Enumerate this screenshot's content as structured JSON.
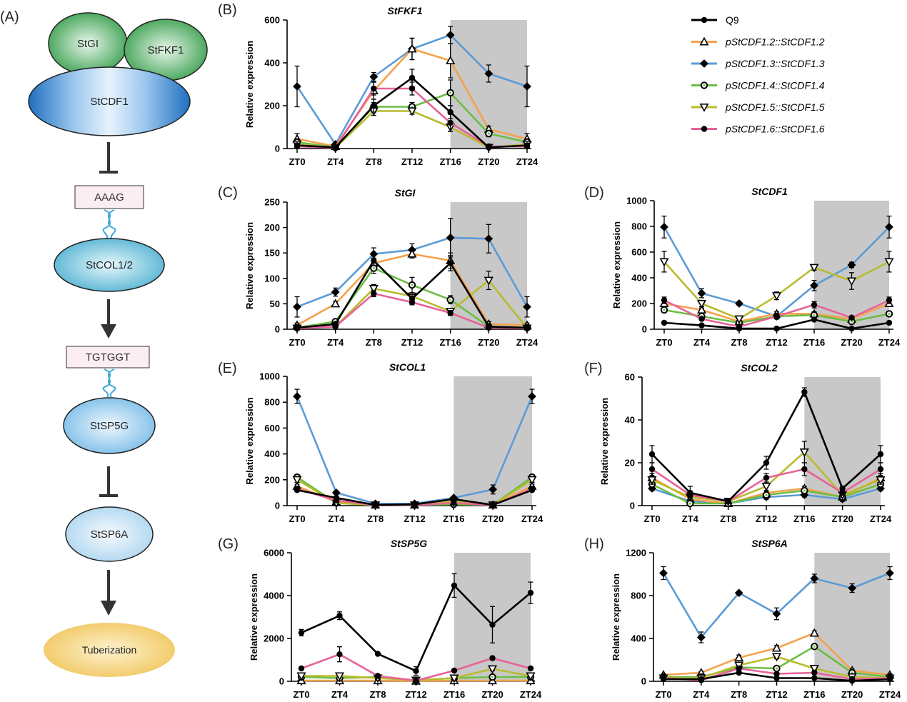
{
  "diagram": {
    "panel_label": "(A)",
    "nodes": {
      "gi": "StGI",
      "fkf1": "StFKF1",
      "cdf1": "StCDF1",
      "aaag": "AAAG",
      "col12": "StCOL1/2",
      "tgtggt": "TGTGGT",
      "sp5g": "StSP5G",
      "sp6a": "StSP6A",
      "tuber": "Tuberization"
    }
  },
  "legend": {
    "items": [
      {
        "label": "Q9",
        "color": "#000000",
        "marker": "circle",
        "italic": false
      },
      {
        "label": "pStCDF1.2::StCDF1.2",
        "color": "#f4a14c",
        "marker": "triangle-up",
        "italic": true
      },
      {
        "label": "pStCDF1.3::StCDF1.3",
        "color": "#5b9bd5",
        "marker": "diamond",
        "italic": true
      },
      {
        "label": "pStCDF1.4::StCDF1.4",
        "color": "#6cbd45",
        "marker": "circle-ring",
        "italic": true
      },
      {
        "label": "pStCDF1.5::StCDF1.5",
        "color": "#b8bb2e",
        "marker": "triangle-down",
        "italic": true
      },
      {
        "label": "pStCDF1.6::StCDF1.6",
        "color": "#e8619a",
        "marker": "circle",
        "italic": true
      }
    ]
  },
  "chart_data": [
    {
      "panel": "(B)",
      "type": "line",
      "title": "StFKF1",
      "ylabel": "Relative expression",
      "categories": [
        "ZT0",
        "ZT4",
        "ZT8",
        "ZT12",
        "ZT16",
        "ZT20",
        "ZT24"
      ],
      "ylim": [
        0,
        600
      ],
      "yticks": [
        0,
        200,
        400,
        600
      ],
      "shaded": [
        "ZT16",
        "ZT24"
      ],
      "series": [
        {
          "name": "Q9",
          "values": [
            15,
            5,
            200,
            330,
            170,
            5,
            15
          ],
          "err": [
            10,
            3,
            30,
            40,
            30,
            3,
            10
          ]
        },
        {
          "name": "pStCDF1.2::StCDF1.2",
          "values": [
            45,
            10,
            270,
            465,
            410,
            90,
            45
          ],
          "err": [
            25,
            5,
            40,
            50,
            80,
            15,
            25
          ]
        },
        {
          "name": "pStCDF1.3::StCDF1.3",
          "values": [
            290,
            20,
            335,
            465,
            530,
            350,
            290
          ],
          "err": [
            95,
            8,
            20,
            50,
            40,
            40,
            95
          ]
        },
        {
          "name": "pStCDF1.4::StCDF1.4",
          "values": [
            30,
            5,
            195,
            195,
            260,
            70,
            30
          ],
          "err": [
            15,
            3,
            20,
            20,
            60,
            15,
            15
          ]
        },
        {
          "name": "pStCDF1.5::StCDF1.5",
          "values": [
            20,
            3,
            175,
            175,
            100,
            5,
            20
          ],
          "err": [
            10,
            2,
            20,
            15,
            20,
            2,
            10
          ]
        },
        {
          "name": "pStCDF1.6::StCDF1.6",
          "values": [
            10,
            3,
            280,
            280,
            120,
            10,
            10
          ],
          "err": [
            5,
            2,
            30,
            30,
            40,
            5,
            5
          ]
        }
      ]
    },
    {
      "panel": "(C)",
      "type": "line",
      "title": "StGI",
      "ylabel": "Relative expression",
      "categories": [
        "ZT0",
        "ZT4",
        "ZT8",
        "ZT12",
        "ZT16",
        "ZT20",
        "ZT24"
      ],
      "ylim": [
        0,
        250
      ],
      "yticks": [
        0,
        50,
        100,
        150,
        200,
        250
      ],
      "shaded": [
        "ZT16",
        "ZT24"
      ],
      "series": [
        {
          "name": "Q9",
          "values": [
            3,
            10,
            135,
            60,
            130,
            5,
            3
          ],
          "err": [
            2,
            3,
            10,
            8,
            15,
            3,
            2
          ]
        },
        {
          "name": "pStCDF1.2::StCDF1.2",
          "values": [
            8,
            50,
            130,
            148,
            135,
            10,
            8
          ],
          "err": [
            4,
            5,
            10,
            8,
            15,
            5,
            4
          ]
        },
        {
          "name": "pStCDF1.3::StCDF1.3",
          "values": [
            44,
            73,
            148,
            156,
            180,
            178,
            44
          ],
          "err": [
            20,
            8,
            12,
            12,
            38,
            28,
            20
          ]
        },
        {
          "name": "pStCDF1.4::StCDF1.4",
          "values": [
            3,
            15,
            120,
            87,
            58,
            5,
            3
          ],
          "err": [
            2,
            4,
            10,
            15,
            8,
            3,
            2
          ]
        },
        {
          "name": "pStCDF1.5::StCDF1.5",
          "values": [
            2,
            5,
            80,
            65,
            35,
            96,
            2
          ],
          "err": [
            1,
            2,
            8,
            6,
            6,
            18,
            1
          ]
        },
        {
          "name": "pStCDF1.6::StCDF1.6",
          "values": [
            2,
            5,
            70,
            53,
            32,
            3,
            2
          ],
          "err": [
            1,
            2,
            6,
            5,
            5,
            2,
            1
          ]
        }
      ]
    },
    {
      "panel": "(D)",
      "type": "line",
      "title": "StCDF1",
      "ylabel": "Relative expression",
      "categories": [
        "ZT0",
        "ZT4",
        "ZT8",
        "ZT12",
        "ZT16",
        "ZT20",
        "ZT24"
      ],
      "ylim": [
        0,
        1000
      ],
      "yticks": [
        0,
        200,
        400,
        600,
        800,
        1000
      ],
      "shaded": [
        "ZT16",
        "ZT24"
      ],
      "series": [
        {
          "name": "Q9",
          "values": [
            50,
            30,
            5,
            5,
            75,
            5,
            50
          ],
          "err": [
            5,
            5,
            3,
            3,
            10,
            3,
            5
          ]
        },
        {
          "name": "pStCDF1.2::StCDF1.2",
          "values": [
            200,
            150,
            60,
            120,
            120,
            80,
            200
          ],
          "err": [
            20,
            15,
            10,
            15,
            15,
            10,
            20
          ]
        },
        {
          "name": "pStCDF1.3::StCDF1.3",
          "values": [
            795,
            280,
            200,
            100,
            340,
            500,
            795
          ],
          "err": [
            85,
            35,
            15,
            15,
            40,
            20,
            85
          ]
        },
        {
          "name": "pStCDF1.4::StCDF1.4",
          "values": [
            150,
            100,
            50,
            100,
            110,
            60,
            120
          ],
          "err": [
            15,
            10,
            8,
            12,
            12,
            8,
            15
          ]
        },
        {
          "name": "pStCDF1.5::StCDF1.5",
          "values": [
            525,
            200,
            80,
            260,
            480,
            375,
            525
          ],
          "err": [
            80,
            25,
            15,
            30,
            20,
            65,
            80
          ]
        },
        {
          "name": "pStCDF1.6::StCDF1.6",
          "values": [
            225,
            80,
            20,
            100,
            190,
            90,
            225
          ],
          "err": [
            25,
            10,
            5,
            15,
            25,
            10,
            25
          ]
        }
      ]
    },
    {
      "panel": "(E)",
      "type": "line",
      "title": "StCOL1",
      "ylabel": "Relative expression",
      "categories": [
        "ZT0",
        "ZT4",
        "ZT8",
        "ZT12",
        "ZT16",
        "ZT20",
        "ZT24"
      ],
      "ylim": [
        0,
        1000
      ],
      "yticks": [
        0,
        200,
        400,
        600,
        800,
        1000
      ],
      "shaded": [
        "ZT16",
        "ZT24"
      ],
      "series": [
        {
          "name": "Q9",
          "values": [
            120,
            60,
            5,
            10,
            50,
            5,
            120
          ],
          "err": [
            10,
            8,
            3,
            4,
            8,
            3,
            10
          ]
        },
        {
          "name": "pStCDF1.2::StCDF1.2",
          "values": [
            150,
            30,
            5,
            5,
            30,
            5,
            150
          ],
          "err": [
            15,
            5,
            3,
            3,
            5,
            3,
            15
          ]
        },
        {
          "name": "pStCDF1.3::StCDF1.3",
          "values": [
            845,
            100,
            15,
            15,
            60,
            125,
            845
          ],
          "err": [
            55,
            15,
            5,
            5,
            10,
            35,
            55
          ]
        },
        {
          "name": "pStCDF1.4::StCDF1.4",
          "values": [
            220,
            20,
            5,
            5,
            10,
            5,
            220
          ],
          "err": [
            20,
            4,
            2,
            2,
            3,
            2,
            20
          ]
        },
        {
          "name": "pStCDF1.5::StCDF1.5",
          "values": [
            200,
            20,
            5,
            5,
            30,
            5,
            200
          ],
          "err": [
            20,
            4,
            2,
            2,
            5,
            2,
            20
          ]
        },
        {
          "name": "pStCDF1.6::StCDF1.6",
          "values": [
            130,
            40,
            5,
            5,
            20,
            5,
            130
          ],
          "err": [
            12,
            6,
            2,
            2,
            4,
            2,
            12
          ]
        }
      ]
    },
    {
      "panel": "(F)",
      "type": "line",
      "title": "StCOL2",
      "ylabel": "Relative expression",
      "categories": [
        "ZT0",
        "ZT4",
        "ZT8",
        "ZT12",
        "ZT16",
        "ZT20",
        "ZT24"
      ],
      "ylim": [
        0,
        60
      ],
      "yticks": [
        0,
        20,
        40,
        60
      ],
      "shaded": [
        "ZT16",
        "ZT24"
      ],
      "series": [
        {
          "name": "Q9",
          "values": [
            24,
            6,
            2,
            20,
            53,
            8,
            24
          ],
          "err": [
            4,
            3,
            1,
            3,
            2,
            1,
            4
          ]
        },
        {
          "name": "pStCDF1.2::StCDF1.2",
          "values": [
            13,
            3,
            1,
            6,
            8,
            4,
            13
          ],
          "err": [
            2,
            1,
            1,
            1,
            1,
            1,
            2
          ]
        },
        {
          "name": "pStCDF1.3::StCDF1.3",
          "values": [
            8,
            2,
            1,
            4,
            5,
            3,
            8
          ],
          "err": [
            1,
            1,
            1,
            1,
            1,
            1,
            1
          ]
        },
        {
          "name": "pStCDF1.4::StCDF1.4",
          "values": [
            10,
            1,
            1,
            5,
            7,
            4,
            10
          ],
          "err": [
            2,
            1,
            1,
            1,
            1,
            1,
            2
          ]
        },
        {
          "name": "pStCDF1.5::StCDF1.5",
          "values": [
            12,
            4,
            2,
            9,
            25,
            5,
            12
          ],
          "err": [
            2,
            1,
            1,
            2,
            5,
            1,
            2
          ]
        },
        {
          "name": "pStCDF1.6::StCDF1.6",
          "values": [
            17,
            5,
            2,
            13,
            17,
            6,
            17
          ],
          "err": [
            3,
            1,
            1,
            2,
            3,
            1,
            3
          ]
        }
      ]
    },
    {
      "panel": "(G)",
      "type": "line",
      "title": "StSP5G",
      "ylabel": "Relative expression",
      "categories": [
        "ZT0",
        "ZT4",
        "ZT8",
        "ZT12",
        "ZT16",
        "ZT20",
        "ZT24"
      ],
      "ylim": [
        0,
        6000
      ],
      "yticks": [
        0,
        2000,
        4000,
        6000
      ],
      "shaded": [
        "ZT16",
        "ZT24"
      ],
      "series": [
        {
          "name": "Q9",
          "values": [
            2270,
            3060,
            1280,
            480,
            4470,
            2640,
            4130
          ],
          "err": [
            150,
            180,
            60,
            200,
            550,
            850,
            500
          ]
        },
        {
          "name": "pStCDF1.2::StCDF1.2",
          "values": [
            30,
            30,
            30,
            10,
            30,
            30,
            30
          ],
          "err": [
            10,
            10,
            10,
            5,
            10,
            10,
            10
          ]
        },
        {
          "name": "pStCDF1.3::StCDF1.3",
          "values": [
            20,
            20,
            20,
            10,
            20,
            20,
            20
          ],
          "err": [
            5,
            5,
            5,
            5,
            5,
            5,
            5
          ]
        },
        {
          "name": "pStCDF1.4::StCDF1.4",
          "values": [
            200,
            150,
            200,
            50,
            150,
            200,
            200
          ],
          "err": [
            30,
            20,
            30,
            10,
            20,
            30,
            30
          ]
        },
        {
          "name": "pStCDF1.5::StCDF1.5",
          "values": [
            250,
            250,
            150,
            50,
            150,
            580,
            250
          ],
          "err": [
            40,
            40,
            20,
            10,
            20,
            80,
            40
          ]
        },
        {
          "name": "pStCDF1.6::StCDF1.6",
          "values": [
            600,
            1260,
            250,
            30,
            500,
            1080,
            600
          ],
          "err": [
            60,
            350,
            40,
            10,
            50,
            80,
            60
          ]
        }
      ]
    },
    {
      "panel": "(H)",
      "type": "line",
      "title": "StSP6A",
      "ylabel": "Relative expression",
      "categories": [
        "ZT0",
        "ZT4",
        "ZT8",
        "ZT12",
        "ZT16",
        "ZT20",
        "ZT24"
      ],
      "ylim": [
        0,
        1200
      ],
      "yticks": [
        0,
        400,
        800,
        1200
      ],
      "shaded": [
        "ZT16",
        "ZT24"
      ],
      "series": [
        {
          "name": "Q9",
          "values": [
            20,
            20,
            80,
            30,
            30,
            5,
            20
          ],
          "err": [
            5,
            5,
            10,
            5,
            5,
            3,
            5
          ]
        },
        {
          "name": "pStCDF1.2::StCDF1.2",
          "values": [
            60,
            80,
            220,
            310,
            450,
            100,
            60
          ],
          "err": [
            10,
            10,
            25,
            25,
            20,
            15,
            10
          ]
        },
        {
          "name": "pStCDF1.3::StCDF1.3",
          "values": [
            1010,
            410,
            825,
            630,
            960,
            870,
            1010
          ],
          "err": [
            60,
            50,
            15,
            55,
            40,
            40,
            60
          ]
        },
        {
          "name": "pStCDF1.4::StCDF1.4",
          "values": [
            40,
            40,
            130,
            120,
            325,
            80,
            40
          ],
          "err": [
            8,
            8,
            15,
            15,
            20,
            10,
            8
          ]
        },
        {
          "name": "pStCDF1.5::StCDF1.5",
          "values": [
            30,
            30,
            150,
            230,
            120,
            40,
            30
          ],
          "err": [
            5,
            5,
            15,
            20,
            15,
            8,
            5
          ]
        },
        {
          "name": "pStCDF1.6::StCDF1.6",
          "values": [
            30,
            10,
            120,
            70,
            80,
            20,
            30
          ],
          "err": [
            5,
            3,
            15,
            10,
            10,
            5,
            5
          ]
        }
      ]
    }
  ]
}
